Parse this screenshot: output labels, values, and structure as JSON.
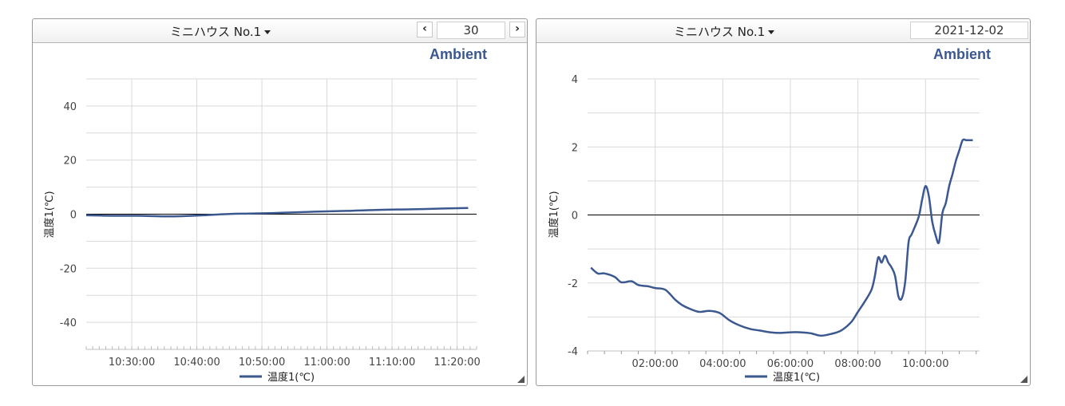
{
  "colors": {
    "series": "#3b5891",
    "grid": "#d9d9d9",
    "brand": "#3b5891",
    "zero_line": "#000000"
  },
  "icons": {
    "prev": "chevron-left-icon",
    "next": "chevron-right-icon",
    "dropdown": "caret-down-icon"
  },
  "left_panel": {
    "device_title": "ミニハウス No.1",
    "prev_label": "‹",
    "next_label": "›",
    "period_value": "30",
    "brand": "Ambient",
    "legend_label": "温度1(℃)"
  },
  "right_panel": {
    "device_title": "ミニハウス No.1",
    "date_value": "2021-12-02",
    "brand": "Ambient",
    "legend_label": "温度1(℃)"
  },
  "chart_data": [
    {
      "type": "line",
      "title": "",
      "xlabel": "",
      "ylabel": "温度1(℃)",
      "x_unit": "minutes after 10:23:00",
      "xlim": [
        0,
        60
      ],
      "ylim": [
        -50,
        50
      ],
      "yticks": [
        40,
        20,
        0,
        -20,
        -40
      ],
      "ytick_labels": [
        "40",
        "20",
        "0",
        "-20",
        "-40"
      ],
      "xticks": [
        7,
        17,
        27,
        37,
        47,
        57
      ],
      "xtick_labels": [
        "10:30:00",
        "10:40:00",
        "10:50:00",
        "11:00:00",
        "11:10:00",
        "11:20:00"
      ],
      "grid": true,
      "legend": "bottom",
      "series": [
        {
          "name": "温度1(℃)",
          "x": [
            0,
            4,
            8,
            12,
            15,
            18,
            22,
            25,
            30,
            35,
            40,
            45,
            50,
            55,
            58.7
          ],
          "y": [
            -0.4,
            -0.6,
            -0.6,
            -0.8,
            -0.7,
            -0.4,
            0.1,
            0.2,
            0.5,
            0.9,
            1.2,
            1.6,
            1.8,
            2.1,
            2.3
          ]
        }
      ]
    },
    {
      "type": "line",
      "title": "",
      "xlabel": "",
      "ylabel": "温度1(℃)",
      "x_unit": "hours after 00:00",
      "xlim": [
        0,
        11.6
      ],
      "ylim": [
        -4,
        4
      ],
      "yticks": [
        4,
        2,
        0,
        -2,
        -4
      ],
      "ytick_labels": [
        "4",
        "2",
        "0",
        "-2",
        "-4"
      ],
      "xticks": [
        2,
        4,
        6,
        8,
        10
      ],
      "xtick_labels": [
        "02:00:00",
        "04:00:00",
        "06:00:00",
        "08:00:00",
        "10:00:00"
      ],
      "grid": true,
      "legend": "bottom",
      "series": [
        {
          "name": "温度1(℃)",
          "x": [
            0.1,
            0.3,
            0.5,
            0.8,
            1.0,
            1.3,
            1.5,
            1.8,
            2.0,
            2.3,
            2.6,
            2.8,
            3.0,
            3.3,
            3.6,
            3.9,
            4.2,
            4.5,
            4.8,
            5.1,
            5.4,
            5.7,
            6.0,
            6.3,
            6.6,
            6.9,
            7.2,
            7.5,
            7.8,
            8.0,
            8.2,
            8.4,
            8.5,
            8.6,
            8.7,
            8.8,
            8.9,
            9.0,
            9.1,
            9.2,
            9.3,
            9.4,
            9.5,
            9.6,
            9.8,
            9.9,
            10.0,
            10.1,
            10.2,
            10.3,
            10.4,
            10.5,
            10.6,
            10.7,
            10.8,
            10.9,
            11.0,
            11.1,
            11.2,
            11.3,
            11.4
          ],
          "y": [
            -1.55,
            -1.72,
            -1.72,
            -1.82,
            -1.98,
            -1.95,
            -2.06,
            -2.1,
            -2.15,
            -2.2,
            -2.5,
            -2.65,
            -2.75,
            -2.85,
            -2.82,
            -2.88,
            -3.1,
            -3.25,
            -3.35,
            -3.4,
            -3.45,
            -3.47,
            -3.45,
            -3.45,
            -3.48,
            -3.55,
            -3.5,
            -3.4,
            -3.15,
            -2.85,
            -2.55,
            -2.2,
            -1.8,
            -1.25,
            -1.4,
            -1.2,
            -1.4,
            -1.55,
            -1.8,
            -2.4,
            -2.45,
            -1.95,
            -0.8,
            -0.55,
            -0.05,
            0.45,
            0.85,
            0.55,
            -0.2,
            -0.6,
            -0.8,
            0.05,
            0.35,
            0.85,
            1.2,
            1.6,
            1.9,
            2.2,
            2.2,
            2.2,
            2.2
          ]
        }
      ]
    }
  ]
}
